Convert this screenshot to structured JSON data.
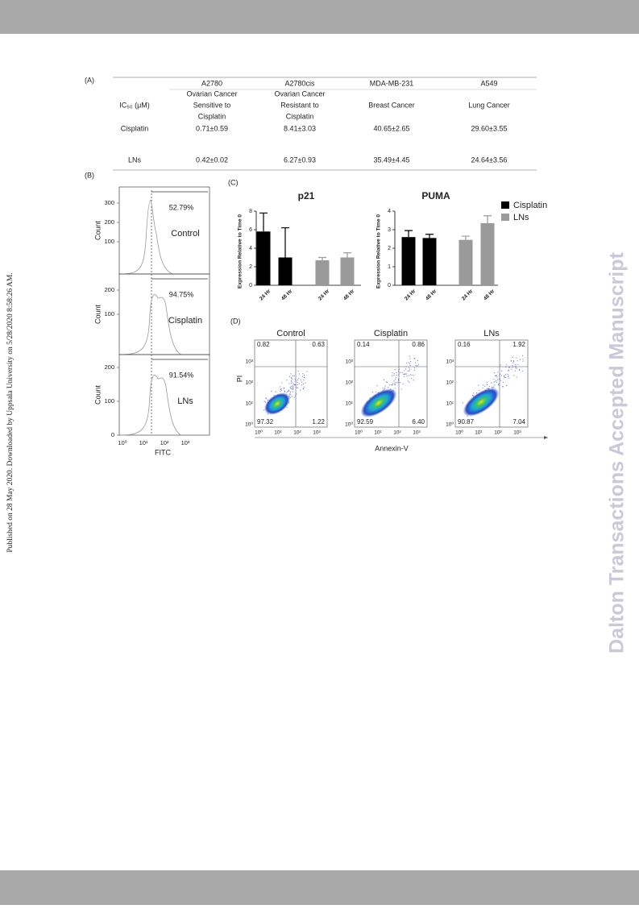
{
  "side_note": "Published on 28 May 2020. Downloaded by Uppsala University on 5/28/2020 8:58:26 AM.",
  "watermark": "Dalton Transactions Accepted Manuscript",
  "figure": {
    "panel_a": {
      "label": "(A)",
      "row_label": "IC₅₀ (μM)",
      "header": [
        "A2780",
        "A2780cis",
        "MDA-MB-231",
        "A549"
      ],
      "subheader": [
        [
          "Ovarian Cancer",
          "Sensitive to",
          "Cisplatin"
        ],
        [
          "Ovarian Cancer",
          "Resistant to",
          "Cisplatin"
        ],
        [
          "Breast Cancer"
        ],
        [
          "Lung Cancer"
        ]
      ],
      "rows": [
        [
          "Cisplatin",
          "0.71±0.59",
          "8.41±3.03",
          "40.65±2.65",
          "29.60±3.55"
        ],
        [
          "LNs",
          "0.42±0.02",
          "6.27±0.93",
          "35.49±4.45",
          "24.64±3.56"
        ]
      ]
    },
    "panel_b": {
      "label": "(B)",
      "y_label": "Count",
      "x_label": "FITC",
      "xticks": [
        "10⁰",
        "10¹",
        "10²",
        "10³"
      ],
      "plots": [
        {
          "name": "Control",
          "percent": "52.79%",
          "yticks": [
            "300",
            "200",
            "100"
          ]
        },
        {
          "name": "Cisplatin",
          "percent": "94.75%",
          "yticks": [
            "200",
            "100"
          ]
        },
        {
          "name": "LNs",
          "percent": "91.54%",
          "yticks": [
            "200",
            "100",
            "0"
          ]
        }
      ]
    },
    "panel_c": {
      "label": "(C)",
      "y_label": "Expression Relative to Time 0",
      "categories": [
        "24 Hr",
        "48 Hr"
      ],
      "charts": [
        {
          "title": "p21",
          "ylim": [
            0,
            8
          ],
          "yticks": [
            0,
            2,
            4,
            6,
            8
          ],
          "series": [
            {
              "name": "Cisplatin",
              "color": "#000000",
              "values": [
                5.8,
                3.0
              ],
              "errors": [
                2.0,
                3.2
              ]
            },
            {
              "name": "LNs",
              "color": "#9a9a9a",
              "values": [
                2.7,
                3.0
              ],
              "errors": [
                0.3,
                0.5
              ]
            }
          ]
        },
        {
          "title": "PUMA",
          "ylim": [
            0,
            4
          ],
          "yticks": [
            0,
            1,
            2,
            3,
            4
          ],
          "series": [
            {
              "name": "Cisplatin",
              "color": "#000000",
              "values": [
                2.6,
                2.55
              ],
              "errors": [
                0.35,
                0.2
              ]
            },
            {
              "name": "LNs",
              "color": "#9a9a9a",
              "values": [
                2.45,
                3.35
              ],
              "errors": [
                0.2,
                0.4
              ]
            }
          ]
        }
      ]
    },
    "panel_d": {
      "label": "(D)",
      "y_label": "PI",
      "x_label": "Annexin-V",
      "ticks": [
        "10⁰",
        "10¹",
        "10²",
        "10³"
      ],
      "plots": [
        {
          "title": "Control",
          "quadrants": [
            "0.82",
            "0.63",
            "97.32",
            "1.22"
          ]
        },
        {
          "title": "Cisplatin",
          "quadrants": [
            "0.14",
            "0.86",
            "92.59",
            "6.40"
          ]
        },
        {
          "title": "LNs",
          "quadrants": [
            "0.16",
            "1.92",
            "90.87",
            "7.04"
          ]
        }
      ]
    }
  }
}
